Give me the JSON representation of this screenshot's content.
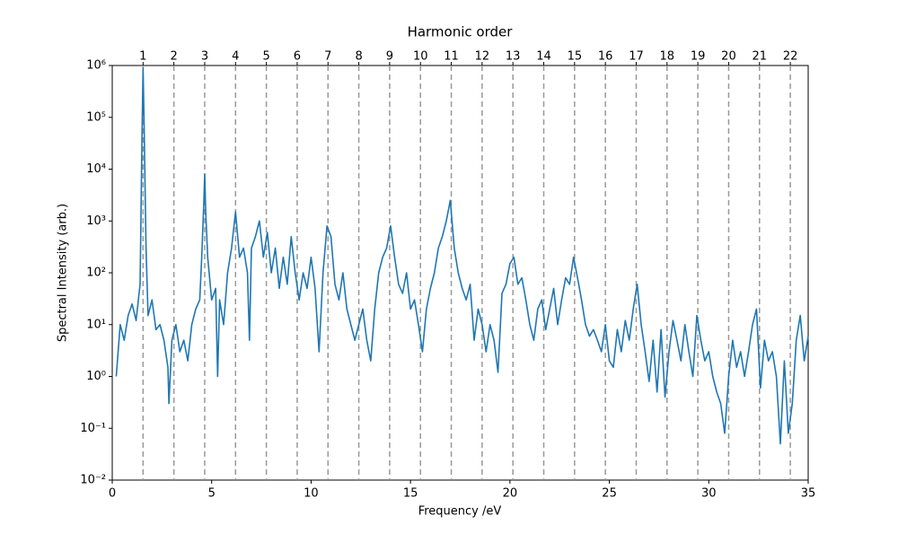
{
  "chart_data": {
    "type": "line",
    "x2label": "Harmonic order",
    "xlabel": "Frequency /eV",
    "ylabel": "Spectral Intensity (arb.)",
    "log_y": true,
    "color": "#1f77b4",
    "harmonic_line_color": "#999999",
    "xlim": [
      0,
      35
    ],
    "xticks": [
      0,
      5,
      10,
      15,
      20,
      25,
      30,
      35
    ],
    "x2lim": [
      0,
      22.58
    ],
    "x2ticks": [
      1,
      2,
      3,
      4,
      5,
      6,
      7,
      8,
      9,
      10,
      11,
      12,
      13,
      14,
      15,
      16,
      17,
      18,
      19,
      20,
      21,
      22
    ],
    "ylim": [
      0.01,
      1000000
    ],
    "yticks": [
      {
        "value": 0.01,
        "label": "10⁻²"
      },
      {
        "value": 0.1,
        "label": "10⁻¹"
      },
      {
        "value": 1,
        "label": "10⁰"
      },
      {
        "value": 10,
        "label": "10¹"
      },
      {
        "value": 100,
        "label": "10²"
      },
      {
        "value": 1000,
        "label": "10³"
      },
      {
        "value": 10000,
        "label": "10⁴"
      },
      {
        "value": 100000,
        "label": "10⁵"
      },
      {
        "value": 1000000,
        "label": "10⁶"
      }
    ],
    "x": [
      0.2,
      0.4,
      0.6,
      0.8,
      1.0,
      1.2,
      1.4,
      1.5,
      1.55,
      1.6,
      1.7,
      1.8,
      2.0,
      2.2,
      2.4,
      2.6,
      2.8,
      2.85,
      3.0,
      3.2,
      3.4,
      3.6,
      3.8,
      4.0,
      4.2,
      4.4,
      4.5,
      4.6,
      4.65,
      4.7,
      4.8,
      5.0,
      5.2,
      5.3,
      5.4,
      5.6,
      5.8,
      6.0,
      6.2,
      6.4,
      6.6,
      6.8,
      6.9,
      7.0,
      7.2,
      7.4,
      7.6,
      7.8,
      8.0,
      8.2,
      8.4,
      8.6,
      8.8,
      9.0,
      9.2,
      9.4,
      9.6,
      9.8,
      10.0,
      10.2,
      10.4,
      10.6,
      10.8,
      11.0,
      11.2,
      11.4,
      11.6,
      11.8,
      12.0,
      12.2,
      12.4,
      12.6,
      12.8,
      13.0,
      13.2,
      13.4,
      13.6,
      13.8,
      14.0,
      14.2,
      14.4,
      14.6,
      14.8,
      15.0,
      15.2,
      15.4,
      15.6,
      15.8,
      16.0,
      16.2,
      16.4,
      16.6,
      16.8,
      17.0,
      17.2,
      17.4,
      17.6,
      17.8,
      18.0,
      18.2,
      18.4,
      18.6,
      18.8,
      19.0,
      19.2,
      19.4,
      19.6,
      19.8,
      20.0,
      20.2,
      20.4,
      20.6,
      20.8,
      21.0,
      21.2,
      21.4,
      21.6,
      21.8,
      22.0,
      22.2,
      22.4,
      22.6,
      22.8,
      23.0,
      23.2,
      23.4,
      23.6,
      23.8,
      24.0,
      24.2,
      24.4,
      24.6,
      24.8,
      25.0,
      25.2,
      25.4,
      25.6,
      25.8,
      26.0,
      26.2,
      26.4,
      26.6,
      26.8,
      27.0,
      27.2,
      27.4,
      27.6,
      27.8,
      28.0,
      28.2,
      28.4,
      28.6,
      28.8,
      29.0,
      29.2,
      29.4,
      29.6,
      29.8,
      30.0,
      30.2,
      30.4,
      30.6,
      30.8,
      31.0,
      31.2,
      31.4,
      31.6,
      31.8,
      32.0,
      32.2,
      32.4,
      32.6,
      32.8,
      33.0,
      33.2,
      33.4,
      33.6,
      33.8,
      34.0,
      34.2,
      34.4,
      34.6,
      34.8,
      35.0
    ],
    "values": [
      1,
      10,
      5,
      15,
      25,
      12,
      60,
      50000,
      900000,
      80000,
      300,
      15,
      30,
      8,
      10,
      5,
      1.5,
      0.3,
      5,
      10,
      3,
      5,
      2,
      10,
      20,
      30,
      200,
      2000,
      8000,
      1500,
      200,
      30,
      50,
      1,
      30,
      10,
      100,
      300,
      1500,
      200,
      300,
      100,
      5,
      300,
      500,
      1000,
      200,
      600,
      100,
      300,
      50,
      200,
      60,
      500,
      100,
      30,
      100,
      50,
      200,
      50,
      3,
      100,
      800,
      500,
      60,
      30,
      100,
      20,
      10,
      5,
      10,
      20,
      5,
      2,
      20,
      100,
      200,
      300,
      800,
      200,
      60,
      40,
      100,
      20,
      30,
      10,
      3,
      20,
      50,
      100,
      300,
      500,
      1000,
      2500,
      300,
      100,
      50,
      30,
      60,
      5,
      20,
      10,
      3,
      10,
      5,
      1.2,
      40,
      60,
      150,
      200,
      60,
      80,
      30,
      10,
      5,
      20,
      30,
      8,
      20,
      50,
      10,
      30,
      80,
      60,
      200,
      80,
      30,
      10,
      6,
      8,
      5,
      3,
      10,
      2,
      1.5,
      8,
      3,
      12,
      5,
      20,
      60,
      10,
      3,
      0.8,
      5,
      0.5,
      8,
      0.4,
      3,
      12,
      5,
      2,
      10,
      3,
      1,
      15,
      5,
      2,
      3,
      1,
      0.5,
      0.3,
      0.08,
      1,
      5,
      1.5,
      3,
      1,
      3,
      10,
      20,
      0.6,
      5,
      2,
      3,
      1,
      0.05,
      2,
      0.08,
      0.3,
      5,
      15,
      2,
      6
    ]
  }
}
